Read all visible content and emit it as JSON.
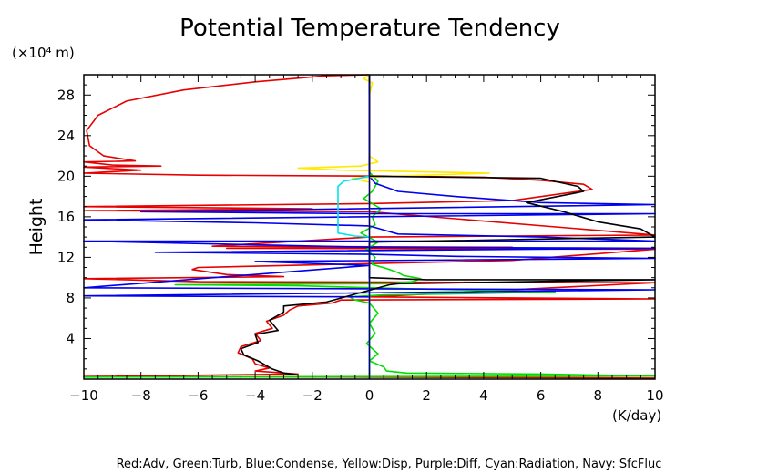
{
  "chart_data": {
    "type": "line",
    "title": "Potential Temperature Tendency",
    "xlabel": "(K/day)",
    "ylabel": "Height",
    "yunit": "(×10⁴ m)",
    "xlim": [
      -10,
      10
    ],
    "ylim": [
      0,
      30
    ],
    "xticks": [
      -10,
      -8,
      -6,
      -4,
      -2,
      0,
      2,
      4,
      6,
      8,
      10
    ],
    "yticks": [
      4,
      8,
      12,
      16,
      20,
      24,
      28
    ],
    "legend_text": "Red:Adv, Green:Turb, Blue:Condense, Yellow:Disp, Purple:Diff, Cyan:Radiation, Navy: SfcFluc",
    "grid": false,
    "series": [
      {
        "name": "Adv",
        "color": "#e60000",
        "points": [
          [
            0,
            30
          ],
          [
            -1.5,
            29.9
          ],
          [
            -4,
            29.3
          ],
          [
            -6.5,
            28.5
          ],
          [
            -8.5,
            27.4
          ],
          [
            -9.5,
            26
          ],
          [
            -9.9,
            24.5
          ],
          [
            -9.8,
            23
          ],
          [
            -9.3,
            22
          ],
          [
            -8.2,
            21.5
          ],
          [
            -10,
            21.4
          ],
          [
            -9,
            21.1
          ],
          [
            -7.3,
            21
          ],
          [
            -10,
            20.9
          ],
          [
            -8,
            20.6
          ],
          [
            -10,
            20.3
          ],
          [
            -6,
            20.1
          ],
          [
            1,
            20
          ],
          [
            4,
            19.9
          ],
          [
            6,
            19.6
          ],
          [
            7.5,
            19.2
          ],
          [
            7.8,
            18.7
          ],
          [
            5,
            17.6
          ],
          [
            0,
            17.3
          ],
          [
            -10,
            17
          ],
          [
            -2,
            16.8
          ],
          [
            -10,
            16.6
          ],
          [
            0,
            16.5
          ],
          [
            10,
            14.2
          ],
          [
            0,
            14
          ],
          [
            -5.5,
            13.1
          ],
          [
            5,
            13
          ],
          [
            -5,
            12.9
          ],
          [
            10,
            12.8
          ],
          [
            5,
            11.7
          ],
          [
            -6,
            11
          ],
          [
            -6.2,
            10.8
          ],
          [
            -5,
            10.3
          ],
          [
            -3,
            10.1
          ],
          [
            -10,
            9.9
          ],
          [
            -6,
            9.6
          ],
          [
            10,
            9.5
          ],
          [
            0,
            8.1
          ],
          [
            10,
            7.9
          ],
          [
            -1,
            7.8
          ],
          [
            -1.3,
            7.5
          ],
          [
            -2.5,
            7.2
          ],
          [
            -2.8,
            6.8
          ],
          [
            -3,
            6.3
          ],
          [
            -3.6,
            5.7
          ],
          [
            -3.4,
            5
          ],
          [
            -4,
            4.5
          ],
          [
            -3.8,
            3.8
          ],
          [
            -4.5,
            3.2
          ],
          [
            -4.6,
            2.6
          ],
          [
            -4.1,
            2
          ],
          [
            -4,
            1.5
          ],
          [
            -3.5,
            1.1
          ],
          [
            -4,
            0.8
          ],
          [
            -2.5,
            0.5
          ],
          [
            -10,
            0.25
          ],
          [
            0,
            0.2
          ],
          [
            10,
            0.1
          ]
        ]
      },
      {
        "name": "Turb",
        "color": "#00dd00",
        "points": [
          [
            0,
            30
          ],
          [
            0,
            20.4
          ],
          [
            0.3,
            19.5
          ],
          [
            0.1,
            18.5
          ],
          [
            -0.2,
            17.8
          ],
          [
            0.4,
            16.8
          ],
          [
            0.1,
            16
          ],
          [
            0.2,
            15.2
          ],
          [
            -0.3,
            14.4
          ],
          [
            0.3,
            13.5
          ],
          [
            -0.1,
            12.8
          ],
          [
            0.2,
            12
          ],
          [
            0.1,
            11.3
          ],
          [
            0.6,
            10.9
          ],
          [
            1,
            10.5
          ],
          [
            1.2,
            10.2
          ],
          [
            1.8,
            9.9
          ],
          [
            1.5,
            9.6
          ],
          [
            0.5,
            9.4
          ],
          [
            -6.8,
            9.3
          ],
          [
            -2.5,
            9.2
          ],
          [
            1.5,
            8.9
          ],
          [
            6.5,
            8.6
          ],
          [
            3,
            8.4
          ],
          [
            0.5,
            8.3
          ],
          [
            -0.7,
            8.1
          ],
          [
            -0.5,
            7.8
          ],
          [
            0,
            7.5
          ],
          [
            0.3,
            6.5
          ],
          [
            0,
            5.5
          ],
          [
            0.2,
            4.5
          ],
          [
            -0.1,
            3.5
          ],
          [
            0.3,
            2.5
          ],
          [
            0,
            1.8
          ],
          [
            0.5,
            1.2
          ],
          [
            0.6,
            0.8
          ],
          [
            1.3,
            0.6
          ],
          [
            6,
            0.5
          ],
          [
            10,
            0.3
          ],
          [
            -10,
            0.2
          ]
        ]
      },
      {
        "name": "Condense",
        "color": "#0000ee",
        "points": [
          [
            0,
            30
          ],
          [
            0,
            20
          ],
          [
            0.2,
            19.3
          ],
          [
            1,
            18.5
          ],
          [
            3,
            18
          ],
          [
            6,
            17.4
          ],
          [
            10,
            17.2
          ],
          [
            -8,
            16.5
          ],
          [
            0,
            16.3
          ],
          [
            10,
            16.3
          ],
          [
            -10,
            15.7
          ],
          [
            -4,
            15.4
          ],
          [
            0,
            15.1
          ],
          [
            1,
            14.3
          ],
          [
            6,
            14
          ],
          [
            10,
            13.6
          ],
          [
            -10,
            13.6
          ],
          [
            0,
            13
          ],
          [
            10,
            12.9
          ],
          [
            -7.5,
            12.5
          ],
          [
            0,
            12.3
          ],
          [
            3,
            12.1
          ],
          [
            10,
            11.9
          ],
          [
            -4,
            11.6
          ],
          [
            0,
            11.2
          ],
          [
            -10,
            9
          ],
          [
            10,
            8.8
          ],
          [
            -10,
            8.2
          ],
          [
            0,
            8.1
          ],
          [
            0,
            0
          ]
        ]
      },
      {
        "name": "Disp",
        "color": "#ffea00",
        "points": [
          [
            0,
            30
          ],
          [
            -0.2,
            29.6
          ],
          [
            0.1,
            29.2
          ],
          [
            0,
            28
          ],
          [
            0,
            22
          ],
          [
            0.3,
            21.4
          ],
          [
            -0.3,
            21
          ],
          [
            -2.5,
            20.8
          ],
          [
            -1,
            20.6
          ],
          [
            4.2,
            20.3
          ],
          [
            0.8,
            20
          ],
          [
            -0.6,
            19.8
          ],
          [
            0,
            19.4
          ],
          [
            0,
            0
          ]
        ]
      },
      {
        "name": "Radiation",
        "color": "#00e5ee",
        "points": [
          [
            0,
            20
          ],
          [
            -0.9,
            19.5
          ],
          [
            -1.1,
            19
          ],
          [
            -1.1,
            14.4
          ],
          [
            -0.5,
            14.1
          ],
          [
            0,
            14
          ],
          [
            0,
            0
          ]
        ]
      },
      {
        "name": "Diff",
        "color": "#000000",
        "points": [
          [
            0,
            30
          ],
          [
            0,
            20
          ],
          [
            6,
            19.8
          ],
          [
            7.3,
            19
          ],
          [
            7.5,
            18.5
          ],
          [
            5.5,
            17.4
          ],
          [
            6.8,
            16.5
          ],
          [
            8,
            15.5
          ],
          [
            9.5,
            14.8
          ],
          [
            10,
            14
          ],
          [
            0,
            13.5
          ],
          [
            0,
            10
          ],
          [
            2,
            9.8
          ],
          [
            10,
            9.8
          ],
          [
            1,
            9.4
          ],
          [
            0.7,
            9.3
          ],
          [
            -0.6,
            8.3
          ],
          [
            -1.5,
            7.6
          ],
          [
            -3,
            7.2
          ],
          [
            -3,
            6.6
          ],
          [
            -3.5,
            5.8
          ],
          [
            -3.2,
            4.8
          ],
          [
            -4,
            4.4
          ],
          [
            -3.9,
            3.6
          ],
          [
            -4.5,
            3
          ],
          [
            -4.4,
            2.4
          ],
          [
            -3.9,
            1.8
          ],
          [
            -3.4,
            1
          ],
          [
            -3,
            0.6
          ],
          [
            -2.5,
            0.4
          ]
        ]
      },
      {
        "name": "SfcFluc",
        "color": "#000080",
        "points": [
          [
            0,
            30
          ],
          [
            0,
            0
          ]
        ]
      }
    ]
  }
}
